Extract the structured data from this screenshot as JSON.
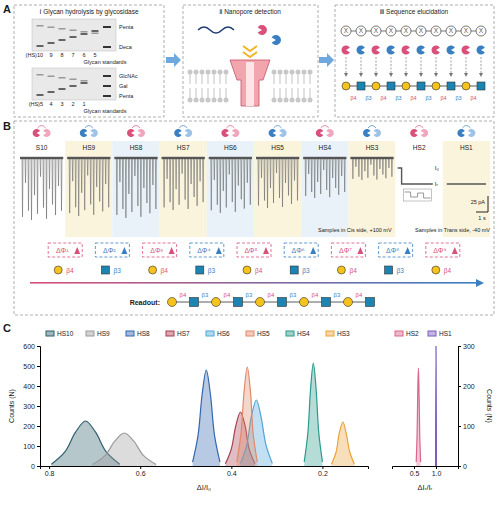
{
  "panel_labels": [
    "A",
    "B",
    "C"
  ],
  "panel_a": {
    "steps": [
      "Ⅰ  Glycan hydrolysis by glycosidase",
      "Ⅱ  Nanopore detection",
      "Ⅲ  Sequence elucidation"
    ],
    "gels": [
      {
        "lanes": [
          "(HS)10",
          "9",
          "8",
          "7",
          "6",
          "5"
        ],
        "standards": "Glycan standards",
        "bands": [
          "Penta",
          "Deca"
        ]
      },
      {
        "lanes": [
          "(HS)5",
          "4",
          "3",
          "2",
          "1"
        ],
        "standards": "Glycan standards",
        "bands": [
          "GlcNAc",
          "Gal",
          "Penta"
        ]
      }
    ],
    "unknown": [
      "X",
      "X",
      "X",
      "X",
      "X",
      "X",
      "X",
      "X",
      "X",
      "X"
    ]
  },
  "panel_b": {
    "samples": [
      "S10",
      "HS9",
      "HS8",
      "HS7",
      "HS6",
      "HS5",
      "HS4",
      "HS3",
      "HS2",
      "HS1"
    ],
    "conditions": [
      "Samples in Cis side, +100 mV",
      "Samples in Trans side, -40 mV"
    ],
    "levels": [
      "I₀",
      "Iᵣ"
    ],
    "scale_bar": {
      "time": "1 s",
      "current": "25 pA"
    },
    "steps": [
      {
        "label": "ΔΦ¹",
        "residue": "Gal",
        "linkage": "β4"
      },
      {
        "label": "ΔΦ²",
        "residue": "GlcNAc",
        "linkage": "β3"
      },
      {
        "label": "ΔΦ³",
        "residue": "Gal",
        "linkage": "β4"
      },
      {
        "label": "ΔΦ⁴",
        "residue": "GlcNAc",
        "linkage": "β3"
      },
      {
        "label": "ΔΦ⁵",
        "residue": "Gal",
        "linkage": "β4"
      },
      {
        "label": "ΔΦ⁶",
        "residue": "GlcNAc",
        "linkage": "β3"
      },
      {
        "label": "ΔΦ⁷",
        "residue": "Gal",
        "linkage": "β4"
      },
      {
        "label": "ΔΦ⁸",
        "residue": "GlcNAc",
        "linkage": "β3"
      },
      {
        "label": "ΔΦ⁹",
        "residue": "Gal",
        "linkage": "β4"
      }
    ],
    "readout": {
      "label": "Readout:",
      "residues": [
        "Gal",
        "GlcNAc",
        "Gal",
        "GlcNAc",
        "Gal",
        "GlcNAc",
        "Gal",
        "GlcNAc",
        "Gal",
        "GlcNAc"
      ],
      "linkages": [
        "β4",
        "β3",
        "β4",
        "β3",
        "β4",
        "β3",
        "β4",
        "β3",
        "β4"
      ]
    }
  },
  "chart_data": [
    {
      "type": "area",
      "x_label": "ΔI/I₀",
      "y_label": "Counts (N)",
      "xlim": [
        0.82,
        0.1
      ],
      "xticks": [
        0.8,
        0.6,
        0.4,
        0.2
      ],
      "ylim": [
        0,
        600
      ],
      "yticks": [
        0,
        100,
        200,
        300,
        400,
        500,
        600
      ],
      "legend": "top",
      "series": [
        {
          "name": "HS10",
          "color": "#2f5f6e",
          "x": [
            0.645,
            0.675,
            0.698,
            0.72,
            0.742,
            0.765,
            0.795
          ],
          "values": [
            9,
            72,
            169,
            225,
            169,
            72,
            9
          ]
        },
        {
          "name": "HS9",
          "color": "#9b9b9b",
          "x": [
            0.565,
            0.593,
            0.614,
            0.635,
            0.656,
            0.677,
            0.705
          ],
          "values": [
            7,
            53,
            124,
            165,
            124,
            53,
            7
          ]
        },
        {
          "name": "HS8",
          "color": "#3466b0",
          "x": [
            0.425,
            0.437,
            0.446,
            0.455,
            0.464,
            0.473,
            0.485
          ],
          "values": [
            19,
            154,
            360,
            480,
            360,
            154,
            19
          ]
        },
        {
          "name": "HS7",
          "color": "#a83f4f",
          "x": [
            0.348,
            0.361,
            0.37,
            0.38,
            0.39,
            0.4,
            0.413
          ],
          "values": [
            11,
            86,
            203,
            270,
            203,
            86,
            11
          ]
        },
        {
          "name": "HS6",
          "color": "#4fa6d6",
          "x": [
            0.31,
            0.324,
            0.335,
            0.345,
            0.356,
            0.366,
            0.38
          ],
          "values": [
            13,
            106,
            248,
            330,
            248,
            106,
            13
          ]
        },
        {
          "name": "HS5",
          "color": "#e0896a",
          "x": [
            0.343,
            0.352,
            0.358,
            0.365,
            0.372,
            0.379,
            0.388
          ],
          "values": [
            20,
            158,
            371,
            495,
            371,
            158,
            20
          ]
        },
        {
          "name": "HS4",
          "color": "#2a9a8c",
          "x": [
            0.2,
            0.208,
            0.214,
            0.22,
            0.226,
            0.232,
            0.24
          ],
          "values": [
            21,
            165,
            386,
            515,
            386,
            165,
            21
          ]
        },
        {
          "name": "HS3",
          "color": "#eba33c",
          "x": [
            0.13,
            0.14,
            0.148,
            0.155,
            0.163,
            0.17,
            0.18
          ],
          "values": [
            9,
            70,
            165,
            220,
            165,
            70,
            9
          ]
        }
      ]
    },
    {
      "type": "area",
      "x_label": "ΔIᵣ/Iᵣ",
      "y_label": "Counts (N)",
      "xlim": [
        0,
        1.5
      ],
      "xticks": [
        0.5,
        {
          "value": 1,
          "label": "1.0"
        }
      ],
      "ylim": [
        0,
        300
      ],
      "yticks": [
        0,
        100,
        200,
        300
      ],
      "legend": "top",
      "series": [
        {
          "name": "HS2",
          "color": "#d9668c",
          "x": [
            0.55,
            0.57,
            0.585,
            0.6,
            0.615,
            0.63,
            0.65
          ],
          "values": [
            10,
            78,
            184,
            245,
            184,
            78,
            10
          ]
        },
        {
          "name": "HS1",
          "color": "#7b5cc0",
          "x": [
            0.99,
            1,
            1.01
          ],
          "values": [
            0,
            300,
            0
          ]
        }
      ]
    }
  ]
}
